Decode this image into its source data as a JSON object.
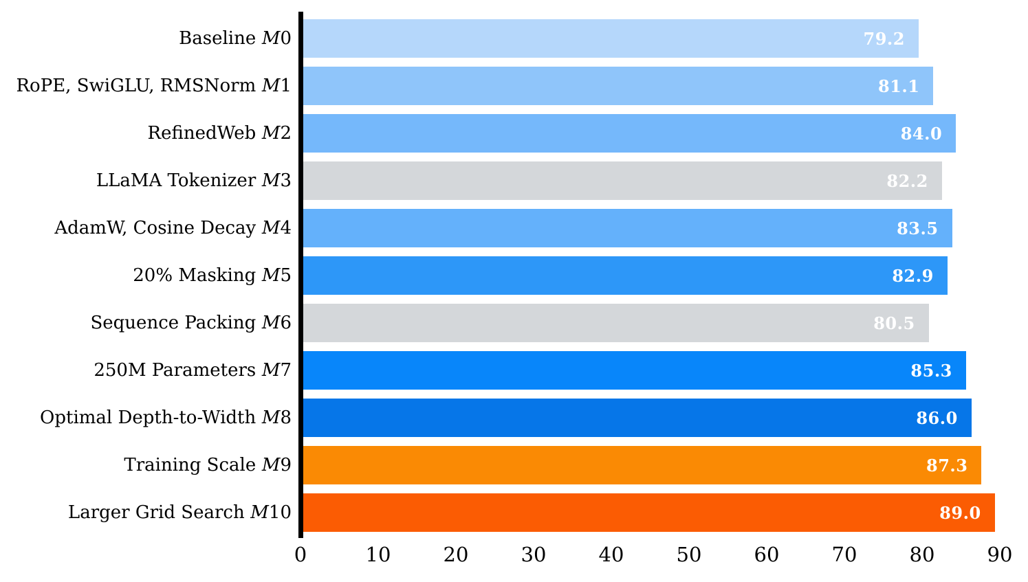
{
  "chart_data": {
    "type": "bar",
    "orientation": "horizontal",
    "title": "",
    "xlabel": "",
    "ylabel": "",
    "xlim": [
      0,
      90
    ],
    "grid": false,
    "legend": false,
    "x_tick_values": [
      0,
      10,
      20,
      30,
      40,
      50,
      60,
      70,
      80,
      90
    ],
    "x_tick_labels": [
      "0",
      "10",
      "20",
      "30",
      "40",
      "50",
      "60",
      "70",
      "80",
      "90"
    ],
    "categories": [
      "Baseline M0",
      "RoPE, SwiGLU, RMSNorm M1",
      "RefinedWeb M2",
      "LLaMA Tokenizer M3",
      "AdamW, Cosine Decay M4",
      "20% Masking M5",
      "Sequence Packing M6",
      "250M Parameters M7",
      "Optimal Depth-to-Width M8",
      "Training Scale M9",
      "Larger Grid Search M10"
    ],
    "values": [
      79.2,
      81.1,
      84.0,
      82.2,
      83.5,
      82.9,
      80.5,
      85.3,
      86.0,
      87.3,
      89.0
    ],
    "value_labels": [
      "79.2",
      "81.1",
      "84.0",
      "82.2",
      "83.5",
      "82.9",
      "80.5",
      "85.3",
      "86.0",
      "87.3",
      "89.0"
    ],
    "bar_colors": [
      "#b5d7fb",
      "#8fc5fa",
      "#75b8fb",
      "#d4d7da",
      "#64b1fb",
      "#2d97f8",
      "#d4d7da",
      "#0886fa",
      "#0676e8",
      "#fa8a04",
      "#fb5c03"
    ],
    "value_label_color": "#ffffff",
    "spine_color": "#000000"
  },
  "rows": [
    {
      "label": "Baseline",
      "model_letter": "M",
      "model_number": "0"
    },
    {
      "label": "RoPE, SwiGLU, RMSNorm",
      "model_letter": "M",
      "model_number": "1"
    },
    {
      "label": "RefinedWeb",
      "model_letter": "M",
      "model_number": "2"
    },
    {
      "label": "LLaMA Tokenizer",
      "model_letter": "M",
      "model_number": "3"
    },
    {
      "label": "AdamW, Cosine Decay",
      "model_letter": "M",
      "model_number": "4"
    },
    {
      "label": "20% Masking",
      "model_letter": "M",
      "model_number": "5"
    },
    {
      "label": "Sequence Packing",
      "model_letter": "M",
      "model_number": "6"
    },
    {
      "label": "250M Parameters",
      "model_letter": "M",
      "model_number": "7"
    },
    {
      "label": "Optimal Depth-to-Width",
      "model_letter": "M",
      "model_number": "8"
    },
    {
      "label": "Training Scale",
      "model_letter": "M",
      "model_number": "9"
    },
    {
      "label": "Larger Grid Search",
      "model_letter": "M",
      "model_number": "10"
    }
  ]
}
